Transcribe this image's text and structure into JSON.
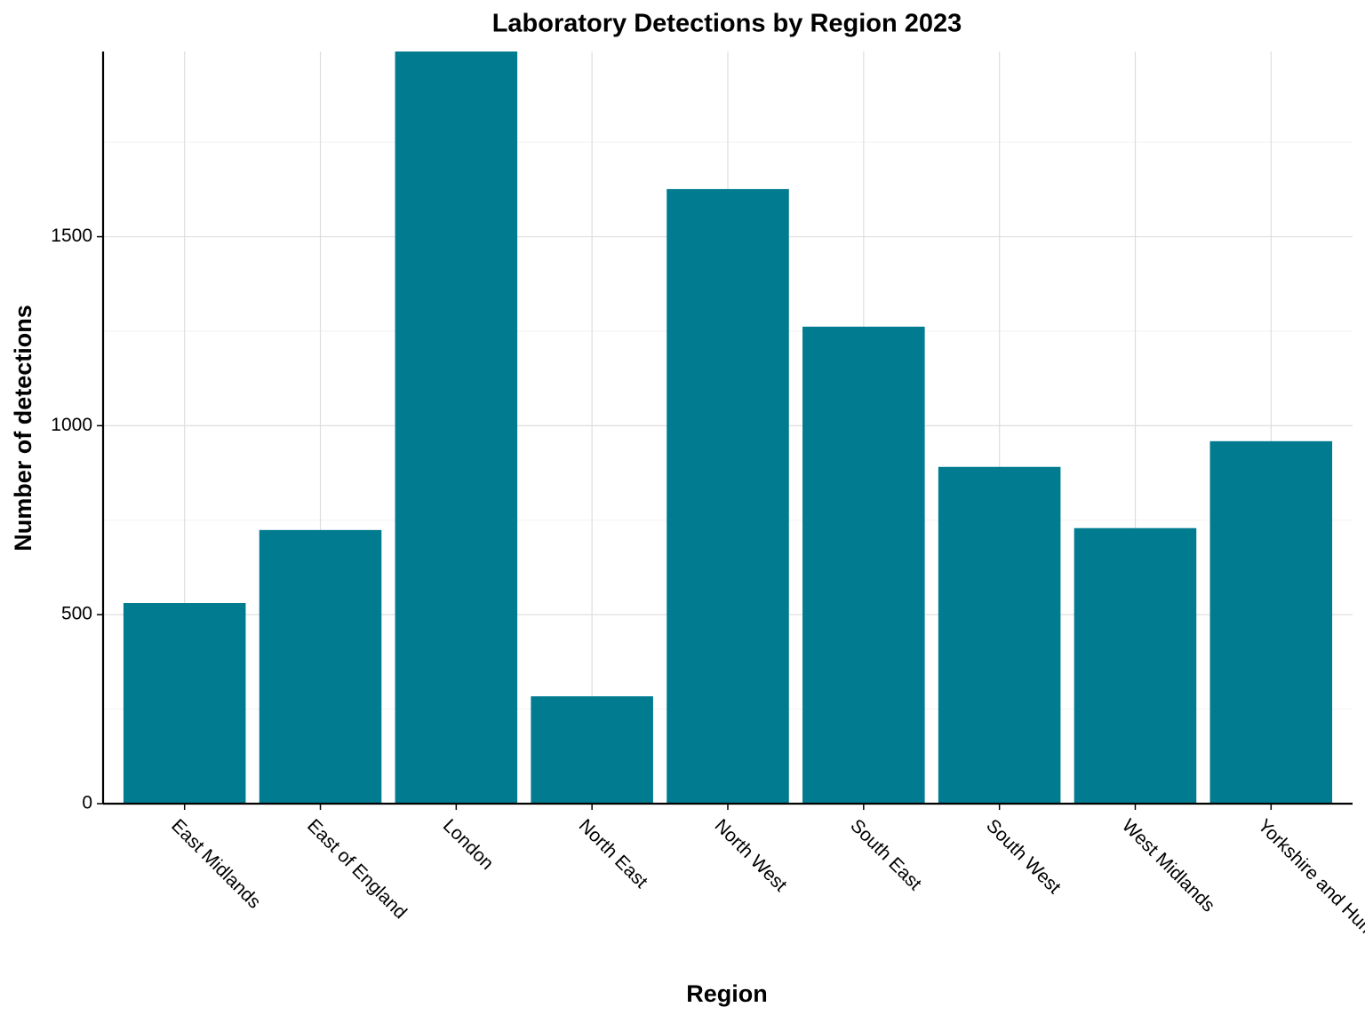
{
  "chart_data": {
    "type": "bar",
    "title": "Laboratory Detections by Region 2023",
    "x_label": "Region",
    "y_label": "Number of detections",
    "categories": [
      "East Midlands",
      "East of England",
      "London",
      "North East",
      "North West",
      "South East",
      "South West",
      "West Midlands",
      "Yorkshire and Humber"
    ],
    "values": [
      531,
      724,
      1990,
      284,
      1626,
      1262,
      891,
      729,
      959
    ],
    "color": "#007b8f",
    "ylim": [
      0,
      1990
    ],
    "yticks": [
      0,
      500,
      1000,
      1500
    ],
    "grid": true
  }
}
